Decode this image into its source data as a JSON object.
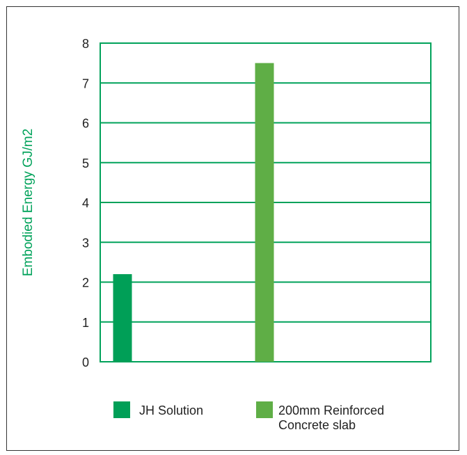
{
  "chart_data": {
    "type": "bar",
    "categories": [
      "JH Solution",
      "200mm Reinforced Concrete slab"
    ],
    "series": [
      {
        "name": "JH Solution",
        "values": [
          2.2,
          null
        ]
      },
      {
        "name": "200mm Reinforced Concrete slab",
        "values": [
          null,
          7.5
        ]
      }
    ],
    "values": [
      2.2,
      7.5
    ],
    "ylabel": "Embodied Energy GJ/m2",
    "xlabel": "",
    "ylim": [
      0,
      8
    ],
    "yticks": [
      "0",
      "1",
      "2",
      "3",
      "4",
      "5",
      "6",
      "7",
      "8"
    ],
    "grid": true,
    "legend_position": "bottom",
    "legend": [
      {
        "lines": [
          "JH Solution"
        ]
      },
      {
        "lines": [
          "200mm Reinforced",
          "Concrete slab"
        ]
      }
    ]
  },
  "colors": {
    "grid": "#00a25a",
    "axis_label": "#00a25a",
    "series": [
      "#009f57",
      "#5fae46"
    ]
  }
}
